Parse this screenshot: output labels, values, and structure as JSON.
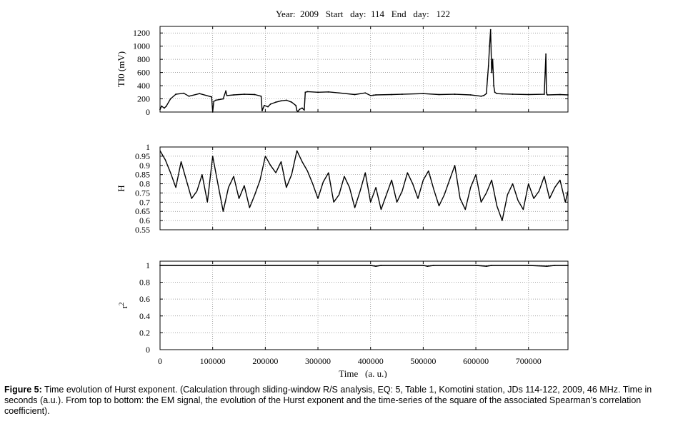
{
  "figure_title": "Year:  2009   Start   day:  114   End   day:   122",
  "caption": {
    "lead": "Figure 5:",
    "text": "Time evolution of Hurst exponent. (Calculation through sliding-window R/S analysis, EQ: 5, Table 1, Komotini station, JDs 114-122, 2009, 46 MHz. Time in seconds (a.u.). From top to bottom: the EM signal, the evolution of the Hurst exponent and the time-series of the square of the associated Spearman’s correlation coefficient)."
  },
  "colors": {
    "line": "#000000",
    "grid": "#888888",
    "background": "#ffffff"
  },
  "chart_data": [
    {
      "type": "line",
      "panel": "top",
      "ylabel": "TI0  (mV)",
      "xlim": [
        0,
        775000
      ],
      "ylim": [
        0,
        1300
      ],
      "y_ticks": [
        0,
        200,
        400,
        600,
        800,
        1000,
        1200
      ],
      "y_tick_labels": [
        "0",
        "200",
        "400",
        "600",
        "800",
        "1000",
        "1200"
      ],
      "grid": true,
      "series": [
        {
          "x": [
            0,
            3000,
            8000,
            12000,
            20000,
            30000,
            45000,
            55000,
            75000,
            98000,
            100000,
            102000,
            106000,
            120000,
            125000,
            127000,
            140000,
            160000,
            180000,
            192000,
            194000,
            196000,
            198000,
            205000,
            210000,
            220000,
            230000,
            240000,
            250000,
            258000,
            260000,
            262000,
            265000,
            270000,
            274000,
            276000,
            280000,
            300000,
            320000,
            340000,
            370000,
            390000,
            400000,
            405000,
            410000,
            440000,
            460000,
            500000,
            530000,
            560000,
            590000,
            610000,
            615000,
            620000,
            622000,
            624000,
            626000,
            628000,
            630000,
            632000,
            634000,
            636000,
            640000,
            650000,
            670000,
            700000,
            730000,
            733000,
            734000,
            735000,
            736000,
            760000,
            775000
          ],
          "y": [
            40,
            90,
            60,
            90,
            200,
            270,
            285,
            240,
            280,
            230,
            0,
            160,
            180,
            200,
            320,
            250,
            260,
            270,
            265,
            240,
            20,
            60,
            100,
            80,
            120,
            150,
            170,
            180,
            150,
            100,
            20,
            10,
            40,
            60,
            30,
            300,
            310,
            300,
            305,
            290,
            265,
            290,
            250,
            255,
            260,
            265,
            270,
            280,
            265,
            270,
            260,
            240,
            250,
            280,
            500,
            700,
            1000,
            1250,
            600,
            800,
            400,
            300,
            280,
            275,
            270,
            265,
            270,
            880,
            300,
            270,
            260,
            265,
            260
          ]
        }
      ]
    },
    {
      "type": "line",
      "panel": "middle",
      "ylabel": "H",
      "xlim": [
        0,
        775000
      ],
      "ylim": [
        0.55,
        1
      ],
      "y_ticks": [
        0.55,
        0.6,
        0.65,
        0.7,
        0.75,
        0.8,
        0.85,
        0.9,
        0.95,
        1
      ],
      "y_tick_labels": [
        "0.55",
        "0.6",
        "0.65",
        "0.7",
        "0.75",
        "0.8",
        "0.85",
        "0.9",
        "0.95",
        "1"
      ],
      "grid": true,
      "series": [
        {
          "x": [
            0,
            10000,
            20000,
            30000,
            40000,
            50000,
            60000,
            70000,
            80000,
            90000,
            100000,
            110000,
            120000,
            130000,
            140000,
            150000,
            160000,
            170000,
            180000,
            190000,
            200000,
            210000,
            220000,
            230000,
            240000,
            250000,
            260000,
            270000,
            280000,
            290000,
            300000,
            310000,
            320000,
            330000,
            340000,
            350000,
            360000,
            370000,
            380000,
            390000,
            400000,
            410000,
            420000,
            430000,
            440000,
            450000,
            460000,
            470000,
            480000,
            490000,
            500000,
            510000,
            520000,
            530000,
            540000,
            550000,
            560000,
            570000,
            580000,
            590000,
            600000,
            610000,
            620000,
            630000,
            640000,
            650000,
            660000,
            670000,
            680000,
            690000,
            700000,
            710000,
            720000,
            730000,
            740000,
            750000,
            760000,
            770000,
            775000
          ],
          "y": [
            0.98,
            0.93,
            0.86,
            0.78,
            0.92,
            0.82,
            0.72,
            0.76,
            0.85,
            0.7,
            0.95,
            0.8,
            0.65,
            0.78,
            0.84,
            0.72,
            0.79,
            0.67,
            0.74,
            0.82,
            0.95,
            0.9,
            0.86,
            0.92,
            0.78,
            0.85,
            0.98,
            0.92,
            0.87,
            0.8,
            0.72,
            0.81,
            0.86,
            0.7,
            0.74,
            0.84,
            0.78,
            0.67,
            0.76,
            0.86,
            0.7,
            0.78,
            0.66,
            0.74,
            0.82,
            0.7,
            0.76,
            0.86,
            0.8,
            0.72,
            0.82,
            0.87,
            0.77,
            0.68,
            0.74,
            0.82,
            0.9,
            0.72,
            0.66,
            0.78,
            0.85,
            0.7,
            0.75,
            0.82,
            0.68,
            0.6,
            0.74,
            0.8,
            0.71,
            0.66,
            0.8,
            0.72,
            0.76,
            0.84,
            0.72,
            0.78,
            0.82,
            0.7,
            0.76
          ]
        }
      ]
    },
    {
      "type": "line",
      "panel": "bottom",
      "ylabel": "r²",
      "xlabel": "Time   (a. u.)",
      "xlim": [
        0,
        775000
      ],
      "ylim": [
        0,
        1.05
      ],
      "y_ticks": [
        0,
        0.2,
        0.4,
        0.6,
        0.8,
        1
      ],
      "y_tick_labels": [
        "0",
        "0.2",
        "0.4",
        "0.6",
        "0.8",
        "1"
      ],
      "x_ticks": [
        0,
        100000,
        200000,
        300000,
        400000,
        500000,
        600000,
        700000
      ],
      "x_tick_labels": [
        "0",
        "100000",
        "200000",
        "300000",
        "400000",
        "500000",
        "600000",
        "700000"
      ],
      "grid": true,
      "series": [
        {
          "x": [
            0,
            100000,
            200000,
            300000,
            400000,
            410000,
            420000,
            500000,
            508000,
            520000,
            600000,
            620000,
            630000,
            700000,
            735000,
            750000,
            775000
          ],
          "y": [
            1,
            1,
            1,
            1,
            1,
            0.99,
            1,
            1,
            0.99,
            1,
            1,
            0.99,
            1,
            1,
            0.99,
            1,
            1
          ]
        }
      ]
    }
  ]
}
